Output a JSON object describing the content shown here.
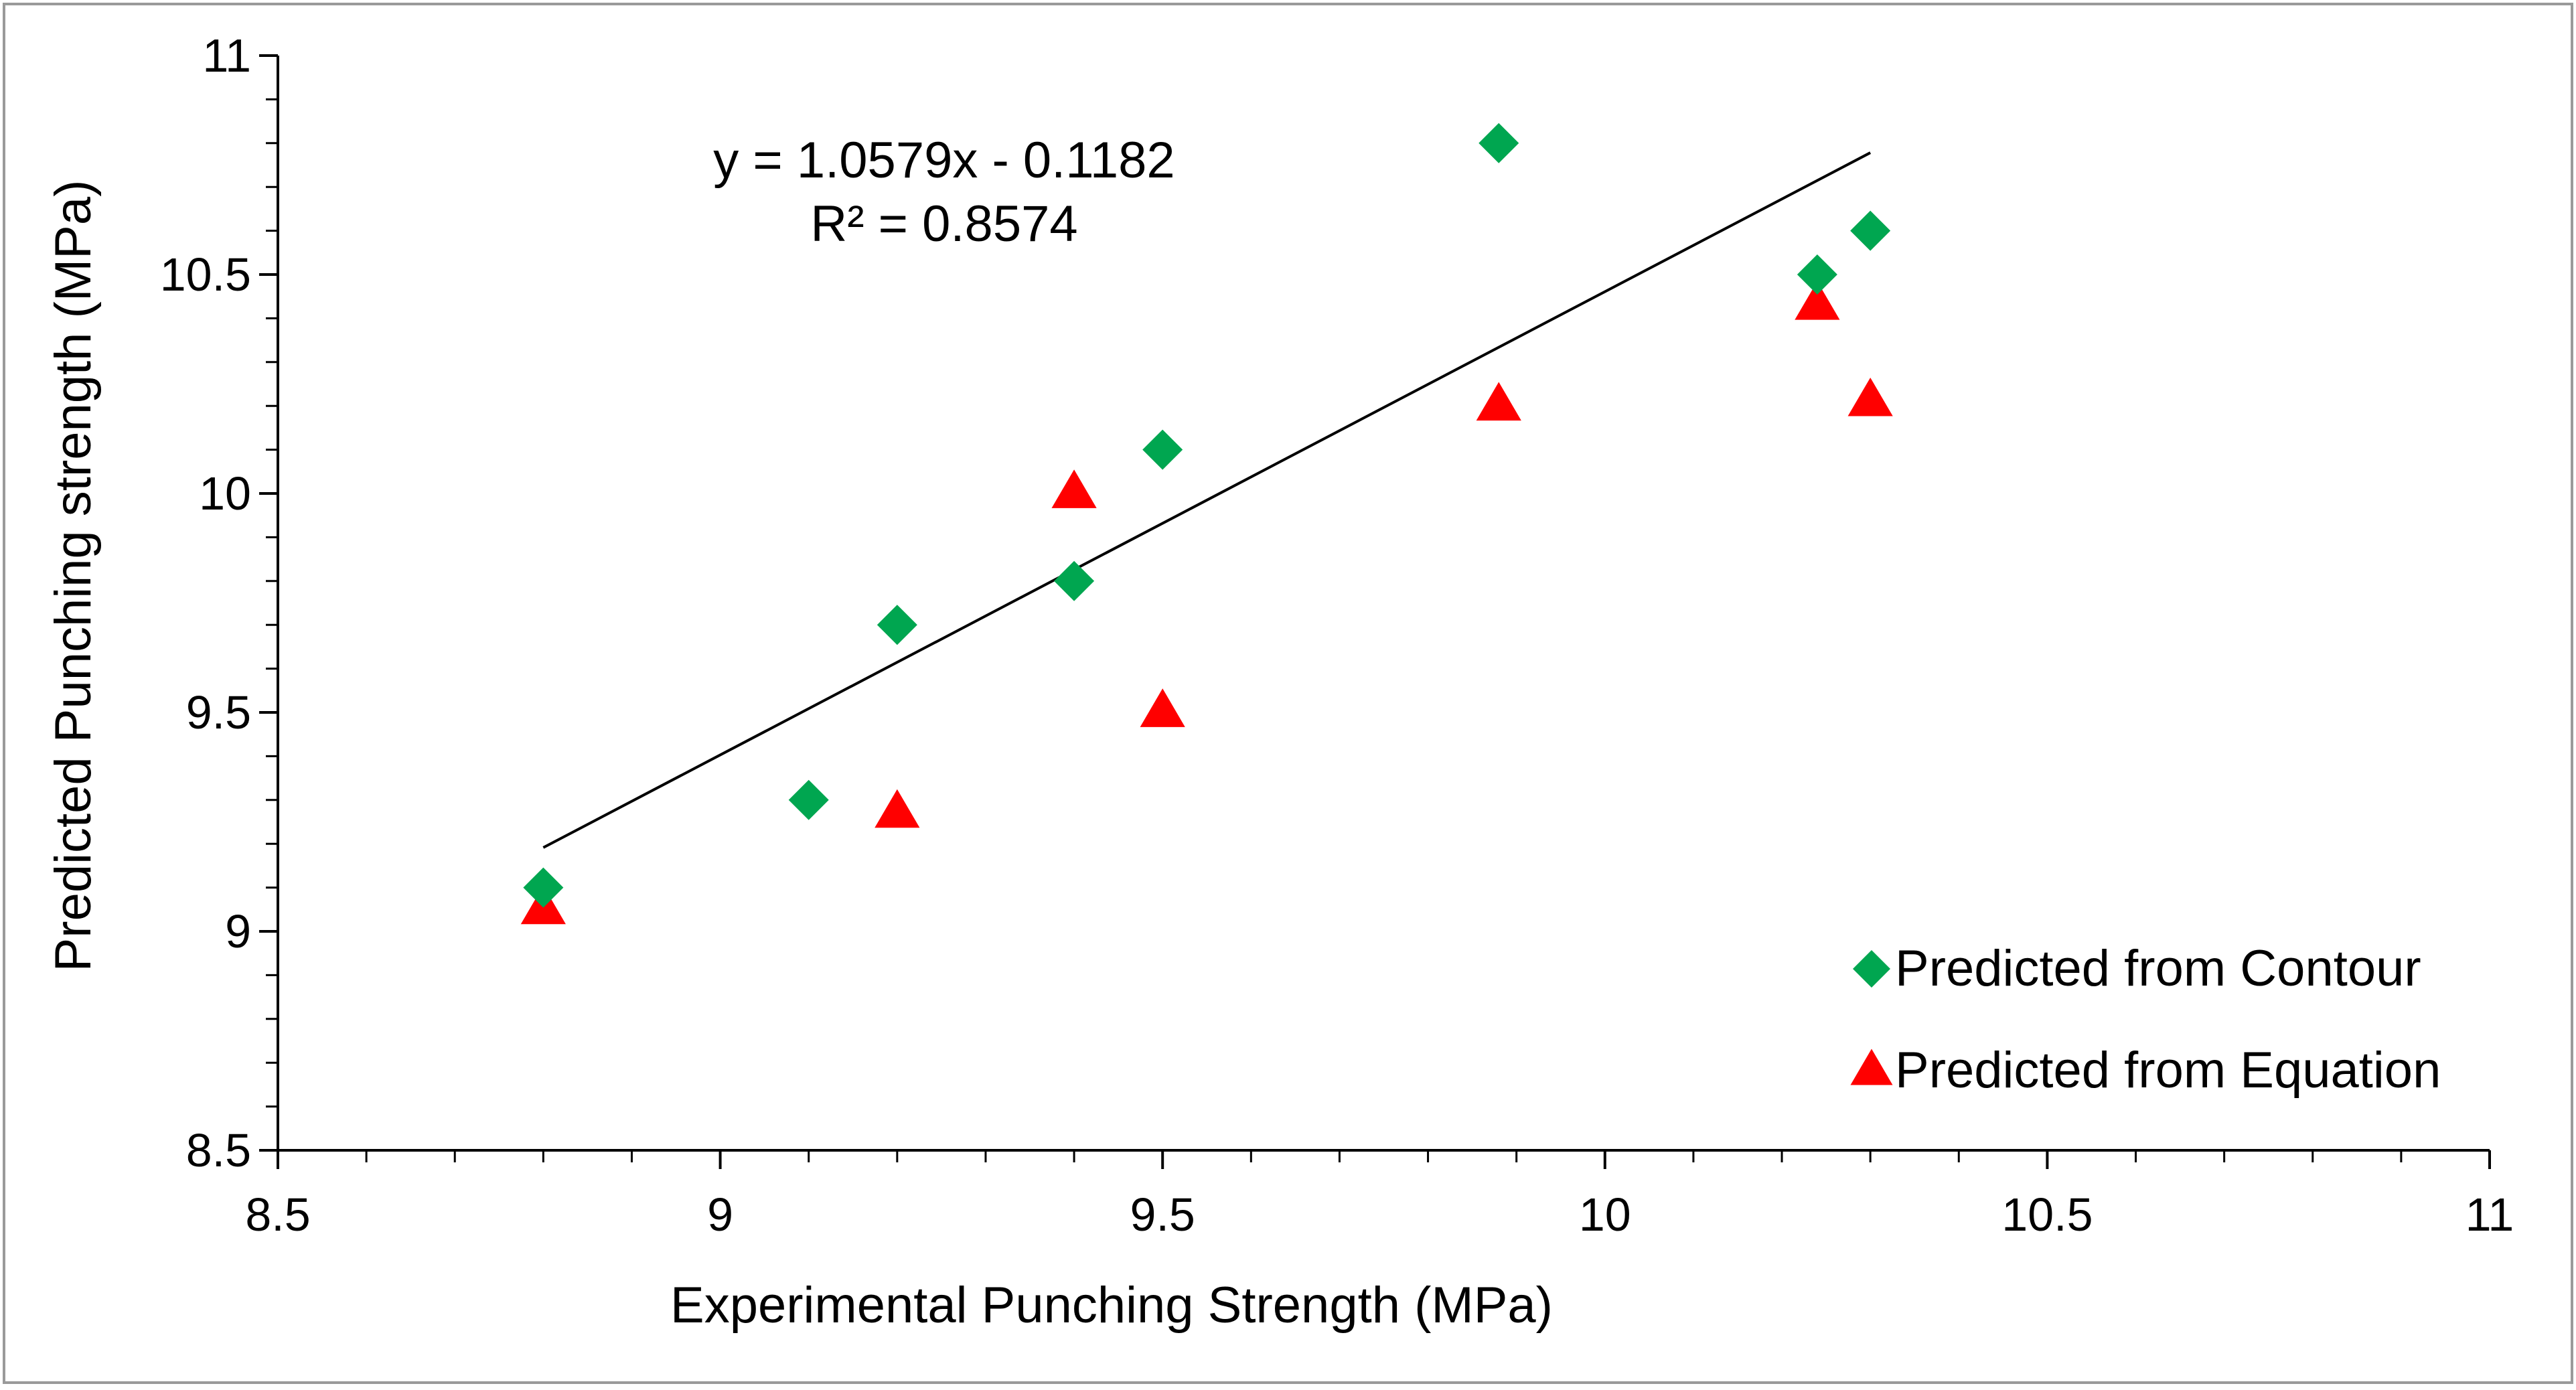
{
  "chart_data": {
    "type": "scatter",
    "title": "",
    "xlabel": "Experimental Punching Strength (MPa)",
    "ylabel": "Predicted Punching strength (MPa)",
    "xlim": [
      8.5,
      11
    ],
    "ylim": [
      8.5,
      11
    ],
    "x_ticks": [
      8.5,
      9,
      9.5,
      10,
      10.5,
      11
    ],
    "y_ticks": [
      8.5,
      9,
      9.5,
      10,
      10.5,
      11
    ],
    "x_tick_labels": [
      "8.5",
      "9",
      "9.5",
      "10",
      "10.5",
      "11"
    ],
    "y_tick_labels": [
      "8.5",
      "9",
      "9.5",
      "10",
      "10.5",
      "11"
    ],
    "grid": false,
    "legend_position": "bottom-right",
    "series": [
      {
        "name": "Predicted from Contour",
        "marker": "diamond",
        "color": "#00A650",
        "x": [
          8.8,
          9.1,
          9.2,
          9.4,
          9.5,
          9.88,
          10.24,
          10.3
        ],
        "y": [
          9.1,
          9.3,
          9.7,
          9.8,
          10.1,
          10.8,
          10.5,
          10.6
        ]
      },
      {
        "name": "Predicted from Equation",
        "marker": "triangle",
        "color": "#FF0000",
        "x": [
          8.8,
          9.2,
          9.4,
          9.5,
          9.88,
          10.24,
          10.3
        ],
        "y": [
          9.05,
          9.27,
          10.0,
          9.5,
          10.2,
          10.43,
          10.21
        ]
      }
    ],
    "trendline": {
      "slope": 1.0579,
      "intercept": -0.1182,
      "x_range": [
        8.8,
        10.3
      ],
      "color": "#000000"
    },
    "annotations": {
      "equation": "y = 1.0579x - 0.1182",
      "r_squared": "R² = 0.8574"
    }
  }
}
